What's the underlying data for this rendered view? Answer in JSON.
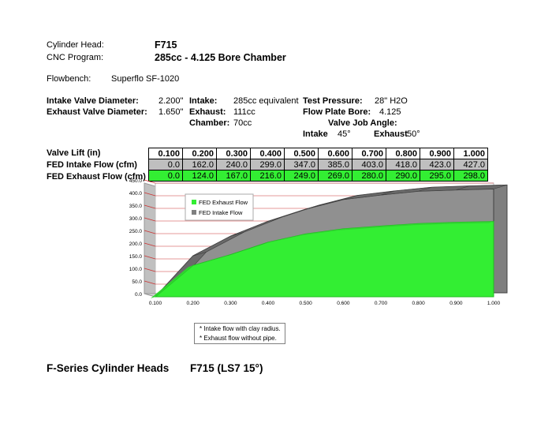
{
  "header": {
    "cylinder_head_label": "Cylinder Head:",
    "cylinder_head_value": "F715",
    "cnc_program_label": "CNC Program:",
    "cnc_program_value": "285cc - 4.125 Bore Chamber",
    "flowbench_label": "Flowbench:",
    "flowbench_value": "Superflo SF-1020"
  },
  "specs": {
    "intake_valve_label": "Intake Valve Diameter:",
    "intake_valve_value": "2.200\"",
    "exhaust_valve_label": "Exhaust Valve Diameter:",
    "exhaust_valve_value": "1.650\"",
    "intake_label": "Intake:",
    "intake_value": "285cc equivalent",
    "exhaust_label": "Exhaust:",
    "exhaust_value": "111cc",
    "chamber_label": "Chamber:",
    "chamber_value": "70cc",
    "test_pressure_label": "Test Pressure:",
    "test_pressure_value": "28\" H2O",
    "flow_plate_label": "Flow Plate Bore:",
    "flow_plate_value": "4.125",
    "valve_job_label": "Valve Job Angle:",
    "vj_intake_label": "Intake",
    "vj_intake_value": "45°",
    "vj_exhaust_label": "Exhaust",
    "vj_exhaust_value": "50°"
  },
  "table": {
    "lift_label": "Valve Lift (in)",
    "intake_label": "FED Intake Flow (cfm)",
    "exhaust_label": "FED Exhaust Flow (cfm)",
    "lift": [
      "0.100",
      "0.200",
      "0.300",
      "0.400",
      "0.500",
      "0.600",
      "0.700",
      "0.800",
      "0.900",
      "1.000"
    ],
    "intake": [
      "0.0",
      "162.0",
      "240.0",
      "299.0",
      "347.0",
      "385.0",
      "403.0",
      "418.0",
      "423.0",
      "427.0"
    ],
    "exhaust": [
      "0.0",
      "124.0",
      "167.0",
      "216.0",
      "249.0",
      "269.0",
      "280.0",
      "290.0",
      "295.0",
      "298.0"
    ]
  },
  "colors": {
    "intake": "#7f7f7f",
    "exhaust": "#33ee33",
    "wall": "#c0c0c0",
    "gridline": "#cc3333"
  },
  "chart_data": {
    "type": "area",
    "x": [
      0.1,
      0.2,
      0.3,
      0.4,
      0.5,
      0.6,
      0.7,
      0.8,
      0.9,
      1.0
    ],
    "x_ticks": [
      "0.100",
      "0.200",
      "0.300",
      "0.400",
      "0.500",
      "0.600",
      "0.700",
      "0.800",
      "0.900",
      "1.000"
    ],
    "y_ticks": [
      "0.0",
      "50.0",
      "100.0",
      "150.0",
      "200.0",
      "250.0",
      "300.0",
      "350.0",
      "400.0",
      "450.0"
    ],
    "ylim": [
      0,
      450
    ],
    "xlim": [
      0.1,
      1.0
    ],
    "series": [
      {
        "name": "FED Intake Flow",
        "values": [
          0,
          162,
          240,
          299,
          347,
          385,
          403,
          418,
          423,
          427
        ]
      },
      {
        "name": "FED Exhaust Flow",
        "values": [
          0,
          124,
          167,
          216,
          249,
          269,
          280,
          290,
          295,
          298
        ]
      }
    ],
    "legend": [
      "FED Exhaust Flow",
      "FED Intake Flow"
    ],
    "legend_position": "top-left",
    "grid": true
  },
  "notes": [
    "* Intake flow with clay radius.",
    "* Exhaust flow without pipe."
  ],
  "footer": {
    "series": "F-Series Cylinder Heads",
    "model": "F715 (LS7 15°)"
  }
}
